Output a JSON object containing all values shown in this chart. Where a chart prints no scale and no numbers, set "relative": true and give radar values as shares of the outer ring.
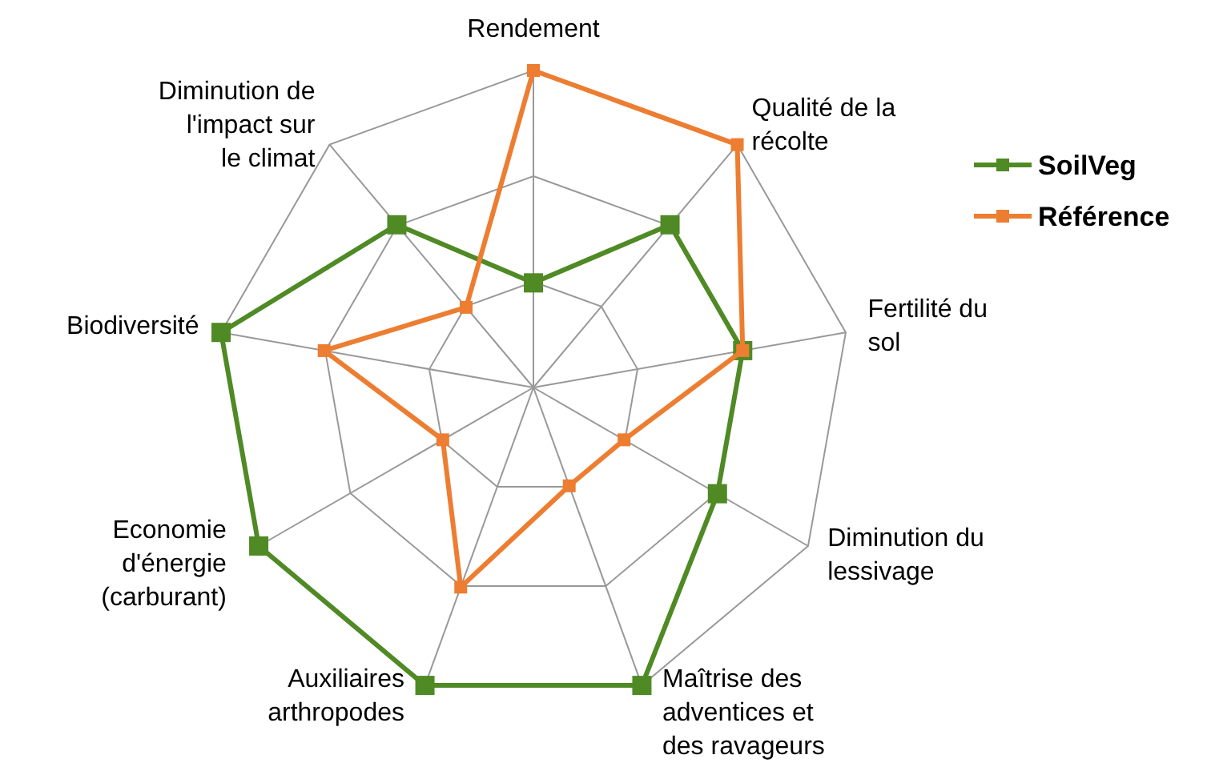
{
  "chart_data": {
    "type": "radar",
    "relative": true,
    "categories": [
      "Rendement",
      "Qualité de la récolte",
      "Fertilité du sol",
      "Diminution du lessivage",
      "Maîtrise des adventices et des ravageurs",
      "Auxiliaires arthropodes",
      "Economie d'énergie (carburant)",
      "Biodiversité",
      "Diminution de l'impact sur le climat"
    ],
    "series": [
      {
        "name": "SoilVeg",
        "color": "#4f8a25",
        "values": [
          0.33,
          0.67,
          0.67,
          0.67,
          1,
          1,
          1,
          1,
          0.67
        ]
      },
      {
        "name": "Référence",
        "color": "#ed7d31",
        "values": [
          1,
          1,
          0.67,
          0.33,
          0.33,
          0.67,
          0.33,
          0.67,
          0.33
        ]
      }
    ],
    "legend": "right",
    "marker": "square",
    "grid": true
  }
}
